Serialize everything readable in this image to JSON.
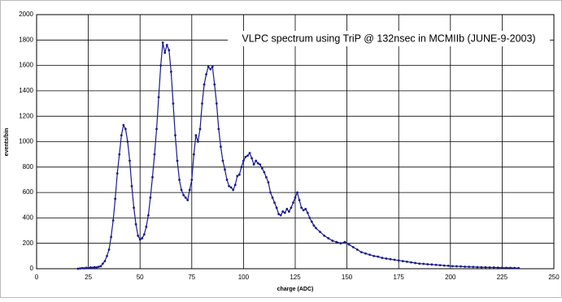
{
  "chart_data": {
    "type": "line",
    "title": "VLPC spectrum using TriP @ 132nsec in MCMIIb (JUNE-9-2003)",
    "x_label": "charge (ADC)",
    "y_label": "events/bin",
    "x": [
      20,
      21,
      22,
      23,
      24,
      25,
      26,
      27,
      28,
      29,
      30,
      31,
      32,
      33,
      34,
      35,
      36,
      37,
      38,
      39,
      40,
      41,
      42,
      43,
      44,
      45,
      46,
      47,
      48,
      49,
      50,
      51,
      52,
      53,
      54,
      55,
      56,
      57,
      58,
      59,
      60,
      61,
      62,
      63,
      64,
      65,
      66,
      67,
      68,
      69,
      70,
      71,
      72,
      73,
      74,
      75,
      76,
      77,
      78,
      79,
      80,
      81,
      82,
      83,
      84,
      85,
      86,
      87,
      88,
      89,
      90,
      91,
      92,
      93,
      94,
      95,
      96,
      97,
      98,
      99,
      100,
      101,
      102,
      103,
      104,
      105,
      106,
      107,
      108,
      109,
      110,
      111,
      112,
      113,
      114,
      115,
      116,
      117,
      118,
      119,
      120,
      121,
      122,
      123,
      124,
      125,
      126,
      127,
      128,
      129,
      130,
      131,
      132,
      133,
      134,
      135,
      137,
      139,
      141,
      143,
      145,
      147,
      149,
      151,
      153,
      155,
      157,
      159,
      161,
      163,
      165,
      167,
      169,
      171,
      173,
      175,
      177,
      179,
      181,
      183,
      185,
      187,
      189,
      191,
      193,
      195,
      197,
      199,
      201,
      203,
      205,
      207,
      209,
      211,
      213,
      215,
      217,
      219,
      221,
      223,
      225,
      227,
      229,
      231,
      233
    ],
    "series": [
      {
        "name": "events/bin",
        "color": "#1a1a8c",
        "values": [
          0,
          2,
          5,
          3,
          8,
          5,
          10,
          8,
          12,
          10,
          15,
          20,
          40,
          60,
          100,
          150,
          250,
          380,
          550,
          750,
          900,
          1050,
          1130,
          1100,
          1000,
          850,
          650,
          480,
          350,
          260,
          230,
          240,
          270,
          330,
          420,
          560,
          720,
          900,
          1100,
          1350,
          1600,
          1780,
          1700,
          1760,
          1720,
          1550,
          1300,
          1050,
          850,
          700,
          620,
          580,
          560,
          540,
          620,
          700,
          900,
          1050,
          1000,
          1100,
          1300,
          1450,
          1530,
          1590,
          1570,
          1590,
          1450,
          1300,
          1100,
          960,
          850,
          780,
          700,
          650,
          640,
          620,
          660,
          730,
          740,
          800,
          850,
          880,
          890,
          910,
          870,
          820,
          850,
          830,
          820,
          790,
          760,
          720,
          680,
          600,
          560,
          520,
          480,
          430,
          420,
          450,
          440,
          470,
          450,
          480,
          520,
          560,
          600,
          540,
          480,
          460,
          470,
          440,
          400,
          370,
          340,
          320,
          290,
          260,
          240,
          220,
          210,
          200,
          210,
          190,
          170,
          150,
          130,
          120,
          110,
          100,
          95,
          85,
          80,
          75,
          70,
          65,
          60,
          55,
          50,
          45,
          40,
          38,
          35,
          33,
          30,
          28,
          25,
          23,
          20,
          19,
          18,
          16,
          15,
          14,
          13,
          12,
          11,
          10,
          10,
          9,
          8,
          7,
          7,
          6,
          5
        ]
      }
    ],
    "xlim": [
      0,
      250
    ],
    "xticks": [
      0,
      25,
      50,
      75,
      100,
      125,
      150,
      175,
      200,
      225,
      250
    ],
    "ylim": [
      0,
      2000
    ],
    "yticks": [
      0,
      200,
      400,
      600,
      800,
      1000,
      1200,
      1400,
      1600,
      1800,
      2000
    ],
    "grid": true
  }
}
